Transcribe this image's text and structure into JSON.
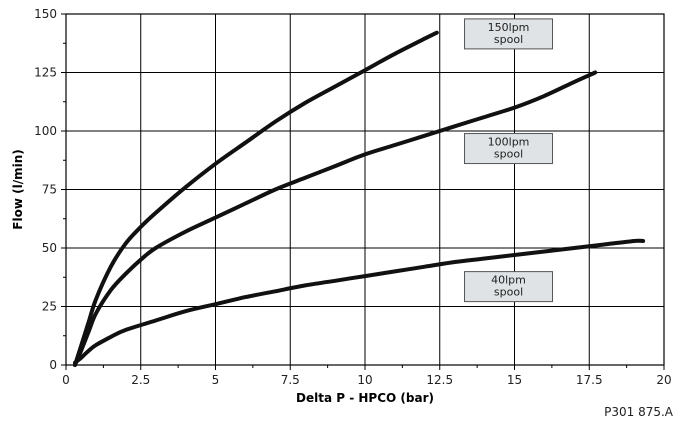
{
  "chart_data": {
    "type": "line",
    "title": "",
    "xlabel": "Delta P - HPCO (bar)",
    "ylabel": "Flow (l/min)",
    "xlim": [
      0,
      20
    ],
    "ylim": [
      0,
      150
    ],
    "xticks": [
      0,
      2.5,
      5,
      7.5,
      10,
      12.5,
      15,
      17.5,
      20
    ],
    "yticks": [
      0,
      25,
      50,
      75,
      100,
      125,
      150
    ],
    "xtick_labels": [
      "0",
      "2.5",
      "5",
      "7.5",
      "10",
      "12.5",
      "15",
      "17.5",
      "20"
    ],
    "ytick_labels": [
      "0",
      "25",
      "50",
      "75",
      "100",
      "125",
      "150"
    ],
    "grid": true,
    "series": [
      {
        "name": "150lpm spool",
        "label_lines": [
          "150lpm",
          "spool"
        ],
        "label_at": [
          14.8,
          141.5
        ],
        "points": [
          [
            0.3,
            0
          ],
          [
            0.5,
            8
          ],
          [
            0.75,
            18
          ],
          [
            1,
            28
          ],
          [
            1.5,
            42
          ],
          [
            2,
            52
          ],
          [
            2.5,
            59
          ],
          [
            3,
            65
          ],
          [
            4,
            76
          ],
          [
            5,
            86
          ],
          [
            6,
            95
          ],
          [
            7,
            104
          ],
          [
            8,
            112
          ],
          [
            9,
            119
          ],
          [
            10,
            126
          ],
          [
            11,
            133
          ],
          [
            12,
            139.5
          ],
          [
            12.4,
            142
          ]
        ]
      },
      {
        "name": "100lpm spool",
        "label_lines": [
          "100lpm",
          "spool"
        ],
        "label_at": [
          14.8,
          92.5
        ],
        "points": [
          [
            0.3,
            0
          ],
          [
            0.5,
            6
          ],
          [
            0.75,
            14
          ],
          [
            1,
            22
          ],
          [
            1.5,
            32
          ],
          [
            2,
            39
          ],
          [
            2.5,
            45
          ],
          [
            3,
            50
          ],
          [
            4,
            57
          ],
          [
            5,
            63
          ],
          [
            6,
            69
          ],
          [
            7,
            75
          ],
          [
            8,
            80
          ],
          [
            9,
            85
          ],
          [
            10,
            90
          ],
          [
            11,
            94
          ],
          [
            12,
            98
          ],
          [
            13,
            102
          ],
          [
            14,
            106
          ],
          [
            15,
            110
          ],
          [
            16,
            115
          ],
          [
            17,
            121
          ],
          [
            17.7,
            125
          ]
        ]
      },
      {
        "name": "40lpm spool",
        "label_lines": [
          "40lpm",
          "spool"
        ],
        "label_at": [
          14.8,
          33.5
        ],
        "points": [
          [
            0.3,
            1
          ],
          [
            0.5,
            3
          ],
          [
            0.75,
            6
          ],
          [
            1,
            8.5
          ],
          [
            1.5,
            12
          ],
          [
            2,
            15
          ],
          [
            3,
            19
          ],
          [
            4,
            23
          ],
          [
            5,
            26
          ],
          [
            6,
            29
          ],
          [
            7,
            31.5
          ],
          [
            8,
            34
          ],
          [
            9,
            36
          ],
          [
            10,
            38
          ],
          [
            11,
            40
          ],
          [
            12,
            42
          ],
          [
            13,
            44
          ],
          [
            14,
            45.5
          ],
          [
            15,
            47
          ],
          [
            16,
            48.5
          ],
          [
            17,
            50
          ],
          [
            18,
            51.5
          ],
          [
            19,
            53
          ],
          [
            19.3,
            53
          ]
        ]
      }
    ]
  },
  "figure": {
    "reference_code": "P301 875.A"
  }
}
